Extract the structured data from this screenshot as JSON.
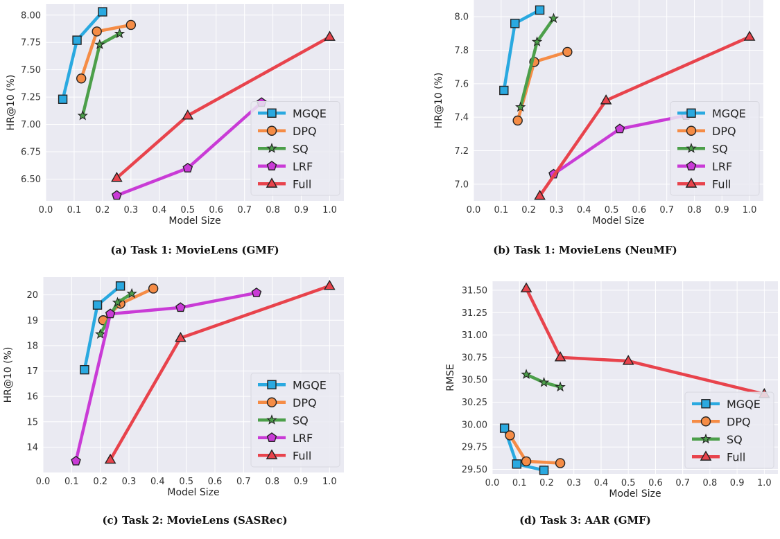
{
  "colors": {
    "MGQE": "#2aa9e0",
    "DPQ": "#f58c46",
    "SQ": "#4c9f4a",
    "LRF": "#c93bd6",
    "Full": "#e8434c",
    "plot_background": "#eaeaf2",
    "grid": "#ffffff"
  },
  "markers": {
    "MGQE": "square",
    "DPQ": "circle",
    "SQ": "star",
    "LRF": "pentagon",
    "Full": "triangle"
  },
  "chart_data": [
    {
      "type": "line",
      "caption": "(a) Task 1: MovieLens (GMF)",
      "xlabel": "Model Size",
      "ylabel": "HR@10 (%)",
      "xlim": [
        0,
        1.05
      ],
      "ylim": [
        6.3,
        8.1
      ],
      "x_ticks": [
        "0.0",
        "0.1",
        "0.2",
        "0.3",
        "0.4",
        "0.5",
        "0.6",
        "0.7",
        "0.8",
        "0.9",
        "1.0"
      ],
      "y_ticks": [
        "6.50",
        "6.75",
        "7.00",
        "7.25",
        "7.50",
        "7.75",
        "8.00"
      ],
      "legend_position": "lower-right",
      "series": [
        {
          "name": "MGQE",
          "x": [
            0.06,
            0.11,
            0.2
          ],
          "y": [
            7.23,
            7.77,
            8.03
          ]
        },
        {
          "name": "DPQ",
          "x": [
            0.125,
            0.18,
            0.3
          ],
          "y": [
            7.42,
            7.85,
            7.91
          ]
        },
        {
          "name": "SQ",
          "x": [
            0.13,
            0.19,
            0.26
          ],
          "y": [
            7.08,
            7.73,
            7.83
          ]
        },
        {
          "name": "LRF",
          "x": [
            0.25,
            0.5,
            0.76
          ],
          "y": [
            6.35,
            6.6,
            7.2
          ]
        },
        {
          "name": "Full",
          "x": [
            0.25,
            0.5,
            1.0
          ],
          "y": [
            6.51,
            7.08,
            7.8
          ]
        }
      ]
    },
    {
      "type": "line",
      "caption": "(b) Task 1: MovieLens (NeuMF)",
      "xlabel": "Model Size",
      "ylabel": "HR@10 (%)",
      "xlim": [
        0,
        1.05
      ],
      "ylim": [
        6.9,
        8.1
      ],
      "x_ticks": [
        "0.0",
        "0.1",
        "0.2",
        "0.3",
        "0.4",
        "0.5",
        "0.6",
        "0.7",
        "0.8",
        "0.9",
        "1.0"
      ],
      "y_ticks": [
        "7.0",
        "7.2",
        "7.4",
        "7.6",
        "7.8",
        "8.0"
      ],
      "legend_position": "lower-right",
      "series": [
        {
          "name": "MGQE",
          "x": [
            0.11,
            0.15,
            0.24
          ],
          "y": [
            7.56,
            7.96,
            8.04
          ]
        },
        {
          "name": "DPQ",
          "x": [
            0.16,
            0.22,
            0.34
          ],
          "y": [
            7.38,
            7.73,
            7.79
          ]
        },
        {
          "name": "SQ",
          "x": [
            0.17,
            0.23,
            0.29
          ],
          "y": [
            7.46,
            7.85,
            7.99
          ]
        },
        {
          "name": "LRF",
          "x": [
            0.29,
            0.53,
            0.77
          ],
          "y": [
            7.06,
            7.33,
            7.41
          ]
        },
        {
          "name": "Full",
          "x": [
            0.24,
            0.48,
            1.0
          ],
          "y": [
            6.93,
            7.5,
            7.88
          ]
        }
      ]
    },
    {
      "type": "line",
      "caption": "(c) Task 2: MovieLens (SASRec)",
      "xlabel": "Model Size",
      "ylabel": "HR@10 (%)",
      "xlim": [
        0,
        1.05
      ],
      "ylim": [
        13.0,
        20.7
      ],
      "x_ticks": [
        "0.0",
        "0.1",
        "0.2",
        "0.3",
        "0.4",
        "0.5",
        "0.6",
        "0.7",
        "0.8",
        "0.9",
        "1.0"
      ],
      "y_ticks": [
        "14",
        "15",
        "16",
        "17",
        "18",
        "19",
        "20"
      ],
      "legend_position": "lower-right",
      "series": [
        {
          "name": "MGQE",
          "x": [
            0.145,
            0.19,
            0.27
          ],
          "y": [
            17.05,
            19.6,
            20.35
          ]
        },
        {
          "name": "DPQ",
          "x": [
            0.21,
            0.27,
            0.385
          ],
          "y": [
            19.0,
            19.65,
            20.25
          ]
        },
        {
          "name": "SQ",
          "x": [
            0.2,
            0.26,
            0.31
          ],
          "y": [
            18.45,
            19.7,
            20.05
          ]
        },
        {
          "name": "LRF",
          "x": [
            0.115,
            0.235,
            0.48,
            0.745
          ],
          "y": [
            13.45,
            19.25,
            19.5,
            20.08
          ]
        },
        {
          "name": "Full",
          "x": [
            0.235,
            0.48,
            1.0
          ],
          "y": [
            13.5,
            18.3,
            20.35
          ]
        }
      ]
    },
    {
      "type": "line",
      "caption": "(d) Task 3: AAR (GMF)",
      "xlabel": "Model Size",
      "ylabel": "RMSE",
      "xlim": [
        0,
        1.05
      ],
      "ylim": [
        29.45,
        31.6
      ],
      "x_ticks": [
        "0.0",
        "0.1",
        "0.2",
        "0.3",
        "0.4",
        "0.5",
        "0.6",
        "0.7",
        "0.8",
        "0.9",
        "1.0"
      ],
      "y_ticks": [
        "29.50",
        "29.75",
        "30.00",
        "30.25",
        "30.50",
        "30.75",
        "31.00",
        "31.25",
        "31.50"
      ],
      "legend_position": "lower-right",
      "series": [
        {
          "name": "MGQE",
          "x": [
            0.045,
            0.09,
            0.19
          ],
          "y": [
            29.96,
            29.56,
            29.49
          ]
        },
        {
          "name": "DPQ",
          "x": [
            0.065,
            0.125,
            0.25
          ],
          "y": [
            29.88,
            29.59,
            29.57
          ]
        },
        {
          "name": "SQ",
          "x": [
            0.125,
            0.19,
            0.25
          ],
          "y": [
            30.56,
            30.47,
            30.42
          ]
        },
        {
          "name": "Full",
          "x": [
            0.125,
            0.25,
            0.5,
            1.0
          ],
          "y": [
            31.52,
            30.75,
            30.71,
            30.34
          ]
        }
      ]
    }
  ]
}
